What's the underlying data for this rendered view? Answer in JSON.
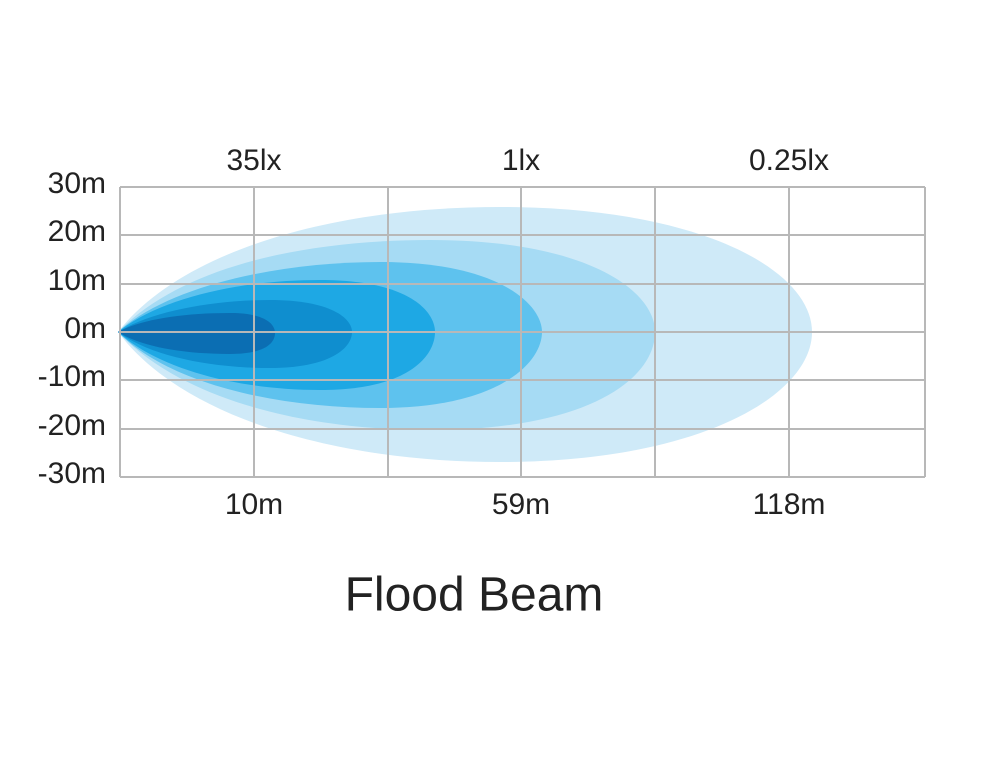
{
  "title": "Flood Beam",
  "y_labels": [
    "30m",
    "20m",
    "10m",
    "0m",
    "-10m",
    "-20m",
    "-30m"
  ],
  "x_labels": [
    "10m",
    "59m",
    "118m"
  ],
  "lux_labels": [
    "35lx",
    "1lx",
    "0.25lx"
  ]
}
